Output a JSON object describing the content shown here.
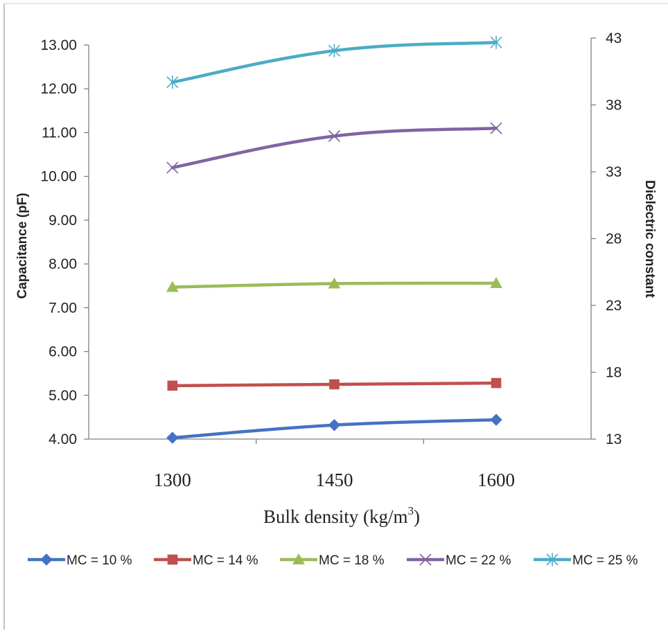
{
  "chart_data": {
    "type": "line",
    "title": "",
    "categories": [
      "1300",
      "1450",
      "1600"
    ],
    "xlabel": "Bulk density (kg/m",
    "xlabel_sup": "3",
    "xlabel_end": ")",
    "ylabel": "Capacitance (pF)",
    "ylabel_right": "Dielectric constant",
    "ylim": [
      4.0,
      13.0
    ],
    "y_ticks": [
      "4.00",
      "5.00",
      "6.00",
      "7.00",
      "8.00",
      "9.00",
      "10.00",
      "11.00",
      "12.00",
      "13.00"
    ],
    "ylim_right": [
      13,
      43
    ],
    "y_ticks_right": [
      "13",
      "18",
      "23",
      "28",
      "33",
      "38",
      "43"
    ],
    "grid": false,
    "legend_position": "bottom",
    "series": [
      {
        "name": "MC = 10 %",
        "values": [
          4.03,
          4.32,
          4.44
        ],
        "color": "#4472c4",
        "marker": "diamond"
      },
      {
        "name": "MC = 14 %",
        "values": [
          5.22,
          5.25,
          5.28
        ],
        "color": "#c0504d",
        "marker": "square"
      },
      {
        "name": "MC = 18 %",
        "values": [
          7.47,
          7.55,
          7.56
        ],
        "color": "#9bbb59",
        "marker": "triangle"
      },
      {
        "name": "MC = 22 %",
        "values": [
          10.2,
          10.92,
          11.1
        ],
        "color": "#8064a2",
        "marker": "x"
      },
      {
        "name": "MC = 25 %",
        "values": [
          12.15,
          12.87,
          13.06
        ],
        "color": "#4bacc6",
        "marker": "star"
      }
    ]
  }
}
